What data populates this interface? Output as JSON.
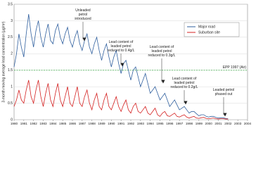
{
  "chart_data": {
    "type": "line",
    "y_label": "3-month moving average lead concentration (µg/m³)",
    "x": [
      1980,
      1980.25,
      1980.5,
      1980.75,
      1981,
      1981.25,
      1981.5,
      1981.75,
      1982,
      1982.25,
      1982.5,
      1982.75,
      1983,
      1983.25,
      1983.5,
      1983.75,
      1984,
      1984.25,
      1984.5,
      1984.75,
      1985,
      1985.25,
      1985.5,
      1985.75,
      1986,
      1986.25,
      1986.5,
      1986.75,
      1987,
      1987.25,
      1987.5,
      1987.75,
      1988,
      1988.25,
      1988.5,
      1988.75,
      1989,
      1989.25,
      1989.5,
      1989.75,
      1990,
      1990.25,
      1990.5,
      1990.75,
      1991,
      1991.25,
      1991.5,
      1991.75,
      1992,
      1992.25,
      1992.5,
      1992.75,
      1993,
      1993.25,
      1993.5,
      1993.75,
      1994,
      1994.25,
      1994.5,
      1994.75,
      1995,
      1995.25,
      1995.5,
      1995.75,
      1996,
      1996.25,
      1996.5,
      1996.75,
      1997,
      1997.25,
      1997.5,
      1997.75,
      1998,
      1998.25,
      1998.5,
      1998.75,
      1999,
      1999.25,
      1999.5,
      1999.75,
      2000,
      2000.25,
      2000.5,
      2000.75,
      2001,
      2001.25,
      2001.5,
      2001.75,
      2002
    ],
    "series": [
      {
        "name": "Major road",
        "color": "#2f5f9e",
        "values": [
          1.6,
          2.0,
          2.6,
          2.2,
          1.9,
          2.6,
          3.2,
          2.6,
          2.2,
          2.7,
          3.0,
          2.5,
          2.2,
          2.6,
          2.9,
          2.4,
          2.3,
          2.7,
          2.9,
          2.5,
          2.3,
          2.6,
          2.8,
          2.4,
          2.2,
          2.5,
          2.7,
          2.3,
          2.1,
          2.4,
          2.6,
          2.2,
          2.0,
          2.3,
          2.5,
          2.1,
          1.8,
          2.1,
          2.3,
          1.9,
          1.6,
          1.9,
          2.1,
          1.7,
          1.4,
          1.7,
          1.8,
          1.5,
          1.2,
          1.5,
          1.6,
          1.3,
          1.0,
          1.2,
          1.4,
          1.1,
          0.8,
          0.9,
          1.0,
          0.8,
          0.6,
          0.7,
          0.8,
          0.6,
          0.4,
          0.5,
          0.6,
          0.45,
          0.3,
          0.35,
          0.4,
          0.3,
          0.2,
          0.25,
          0.25,
          0.18,
          0.12,
          0.15,
          0.15,
          0.1,
          0.08,
          0.1,
          0.1,
          0.07,
          0.05,
          0.06,
          0.06,
          0.04,
          0.03
        ]
      },
      {
        "name": "Suburban site",
        "color": "#d42020",
        "values": [
          0.4,
          0.6,
          0.9,
          0.6,
          0.5,
          0.9,
          1.2,
          0.7,
          0.5,
          0.9,
          1.2,
          0.7,
          0.4,
          0.8,
          1.1,
          0.6,
          0.4,
          0.8,
          1.1,
          0.6,
          0.4,
          0.7,
          1.0,
          0.5,
          0.4,
          0.7,
          1.0,
          0.5,
          0.4,
          0.7,
          0.9,
          0.5,
          0.3,
          0.6,
          0.8,
          0.4,
          0.3,
          0.6,
          0.8,
          0.4,
          0.3,
          0.5,
          0.7,
          0.4,
          0.25,
          0.45,
          0.6,
          0.3,
          0.2,
          0.4,
          0.5,
          0.25,
          0.2,
          0.3,
          0.4,
          0.2,
          0.15,
          0.25,
          0.35,
          0.15,
          0.1,
          0.2,
          0.25,
          0.12,
          0.1,
          0.15,
          0.2,
          0.1,
          0.08,
          0.12,
          0.15,
          0.08,
          0.05,
          0.08,
          0.1,
          0.05,
          0.04,
          0.06,
          0.07,
          0.04,
          0.03,
          0.04,
          0.05,
          0.03,
          0.02,
          0.03,
          0.03,
          0.02,
          0.02
        ]
      }
    ],
    "xlim": [
      1980,
      2004
    ],
    "xticks": [
      1980,
      1981,
      1982,
      1983,
      1984,
      1985,
      1986,
      1987,
      1988,
      1989,
      1990,
      1991,
      1992,
      1993,
      1994,
      1995,
      1996,
      1997,
      1998,
      1999,
      2000,
      2001,
      2002,
      2003,
      2004
    ],
    "ylim": [
      0,
      3.5
    ],
    "yticks": [
      0,
      0.5,
      1,
      1.5,
      2,
      2.5,
      3,
      3.5
    ],
    "grid": true,
    "legend_position": "upper right",
    "reference_line": {
      "value": 1.5,
      "label": "EPP 1997 (Air)",
      "color": "#3fae49"
    },
    "annotations": [
      "Unleaded\npetrol\nintroduced",
      "Lead content of\nleaded petrol\nreduced to 0.4g/L",
      "Lead content of\nleaded petrol\nreduced to 0.3g/L",
      "Lead content of\nleaded petrol\nreduced to 0.2g/L",
      "Leaded petrol\nphased out"
    ]
  }
}
